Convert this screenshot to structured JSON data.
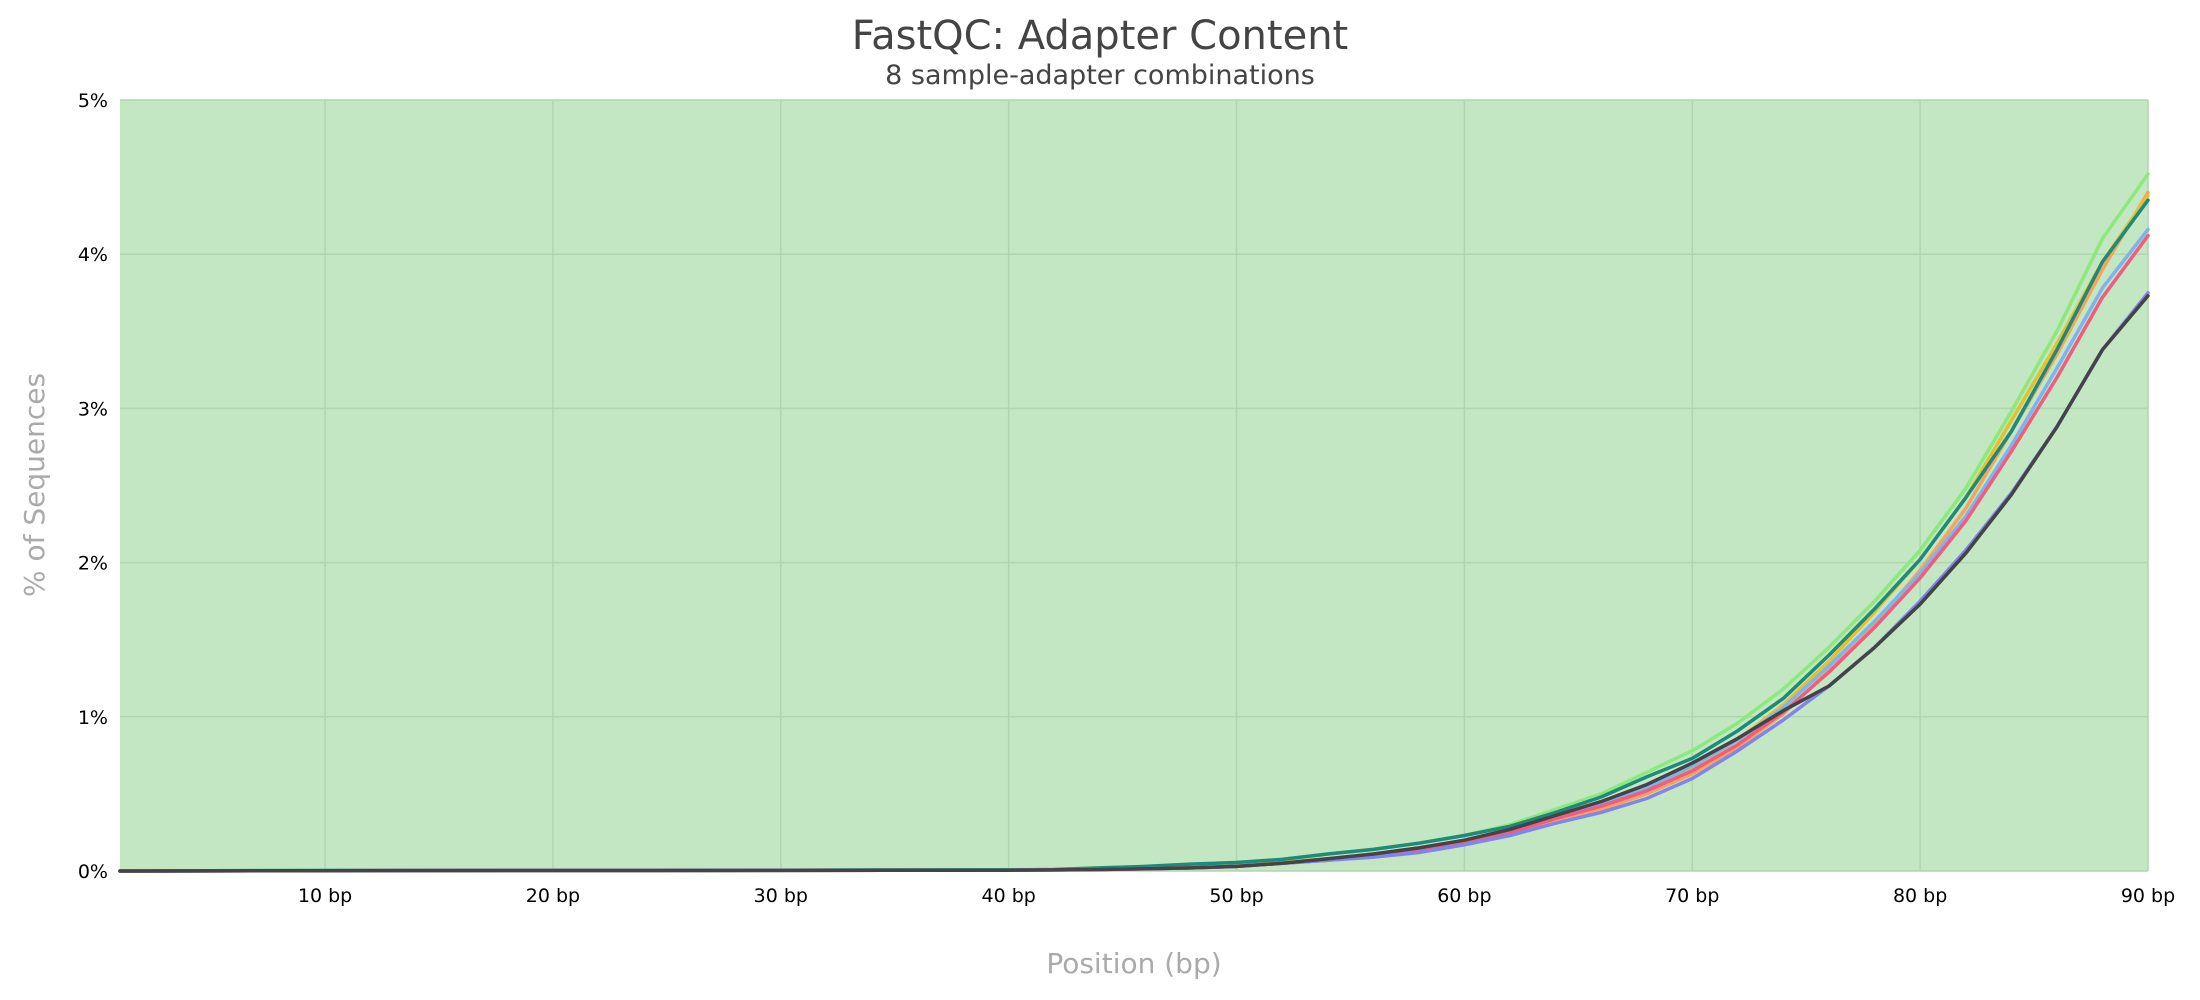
{
  "chart_data": {
    "type": "line",
    "title": "FastQC: Adapter Content",
    "subtitle": "8 sample-adapter combinations",
    "xlabel": "Position (bp)",
    "ylabel": "% of Sequences",
    "xlim": [
      1,
      90
    ],
    "ylim": [
      0,
      5
    ],
    "x_ticks": [
      {
        "value": 10,
        "label": "10 bp"
      },
      {
        "value": 20,
        "label": "20 bp"
      },
      {
        "value": 30,
        "label": "30 bp"
      },
      {
        "value": 40,
        "label": "40 bp"
      },
      {
        "value": 50,
        "label": "50 bp"
      },
      {
        "value": 60,
        "label": "60 bp"
      },
      {
        "value": 70,
        "label": "70 bp"
      },
      {
        "value": 80,
        "label": "80 bp"
      },
      {
        "value": 90,
        "label": "90 bp"
      }
    ],
    "y_ticks": [
      {
        "value": 0,
        "label": "0%"
      },
      {
        "value": 1,
        "label": "1%"
      },
      {
        "value": 2,
        "label": "2%"
      },
      {
        "value": 3,
        "label": "3%"
      },
      {
        "value": 4,
        "label": "4%"
      },
      {
        "value": 5,
        "label": "5%"
      }
    ],
    "grid": true,
    "background_color": "#c3e6c3",
    "grid_color": "#b0d6b0",
    "x": [
      1,
      10,
      20,
      30,
      40,
      42,
      44,
      46,
      48,
      50,
      52,
      54,
      56,
      58,
      60,
      62,
      64,
      66,
      68,
      70,
      72,
      74,
      76,
      78,
      80,
      82,
      84,
      86,
      88,
      90
    ],
    "series": [
      {
        "color": "#f7a35c",
        "values": [
          0,
          0.002,
          0.003,
          0.004,
          0.005,
          0.007,
          0.01,
          0.015,
          0.02,
          0.03,
          0.05,
          0.07,
          0.09,
          0.12,
          0.17,
          0.24,
          0.32,
          0.4,
          0.5,
          0.63,
          0.8,
          1.02,
          1.3,
          1.6,
          1.95,
          2.35,
          2.85,
          3.35,
          3.9,
          4.4
        ]
      },
      {
        "color": "#e6c12b",
        "values": [
          0,
          0.002,
          0.003,
          0.004,
          0.006,
          0.008,
          0.012,
          0.018,
          0.025,
          0.035,
          0.055,
          0.08,
          0.1,
          0.13,
          0.19,
          0.26,
          0.34,
          0.43,
          0.54,
          0.67,
          0.85,
          1.08,
          1.36,
          1.68,
          2.02,
          2.42,
          2.92,
          3.42,
          3.95,
          4.38
        ]
      },
      {
        "color": "#8de97b",
        "values": [
          0,
          0.003,
          0.004,
          0.005,
          0.007,
          0.01,
          0.02,
          0.03,
          0.045,
          0.055,
          0.075,
          0.11,
          0.14,
          0.18,
          0.23,
          0.3,
          0.4,
          0.5,
          0.64,
          0.78,
          0.96,
          1.18,
          1.45,
          1.75,
          2.08,
          2.48,
          2.98,
          3.5,
          4.1,
          4.52
        ]
      },
      {
        "color": "#1e8a7a",
        "values": [
          0,
          0.003,
          0.004,
          0.005,
          0.007,
          0.01,
          0.02,
          0.03,
          0.045,
          0.055,
          0.075,
          0.11,
          0.14,
          0.18,
          0.23,
          0.29,
          0.38,
          0.48,
          0.61,
          0.73,
          0.91,
          1.12,
          1.4,
          1.7,
          2.02,
          2.42,
          2.85,
          3.38,
          3.95,
          4.35
        ]
      },
      {
        "color": "#7cb5ec",
        "values": [
          0,
          0.002,
          0.003,
          0.004,
          0.005,
          0.007,
          0.01,
          0.015,
          0.02,
          0.03,
          0.05,
          0.07,
          0.1,
          0.14,
          0.19,
          0.26,
          0.35,
          0.44,
          0.54,
          0.68,
          0.85,
          1.06,
          1.33,
          1.62,
          1.93,
          2.3,
          2.76,
          3.26,
          3.78,
          4.16
        ]
      },
      {
        "color": "#f15c80",
        "values": [
          0,
          0.002,
          0.003,
          0.004,
          0.005,
          0.007,
          0.01,
          0.015,
          0.02,
          0.03,
          0.05,
          0.07,
          0.1,
          0.13,
          0.18,
          0.25,
          0.34,
          0.42,
          0.52,
          0.65,
          0.82,
          1.03,
          1.29,
          1.58,
          1.9,
          2.27,
          2.72,
          3.2,
          3.72,
          4.12
        ]
      },
      {
        "color": "#8085e9",
        "values": [
          0,
          0.002,
          0.003,
          0.004,
          0.005,
          0.007,
          0.01,
          0.015,
          0.02,
          0.03,
          0.05,
          0.07,
          0.09,
          0.12,
          0.17,
          0.23,
          0.31,
          0.38,
          0.47,
          0.6,
          0.78,
          0.98,
          1.2,
          1.45,
          1.75,
          2.08,
          2.45,
          2.88,
          3.38,
          3.75
        ]
      },
      {
        "color": "#434348",
        "values": [
          0,
          0.002,
          0.003,
          0.004,
          0.005,
          0.007,
          0.01,
          0.015,
          0.02,
          0.03,
          0.05,
          0.08,
          0.11,
          0.15,
          0.2,
          0.27,
          0.36,
          0.45,
          0.56,
          0.7,
          0.86,
          1.04,
          1.2,
          1.45,
          1.73,
          2.06,
          2.44,
          2.88,
          3.38,
          3.73
        ]
      }
    ]
  }
}
